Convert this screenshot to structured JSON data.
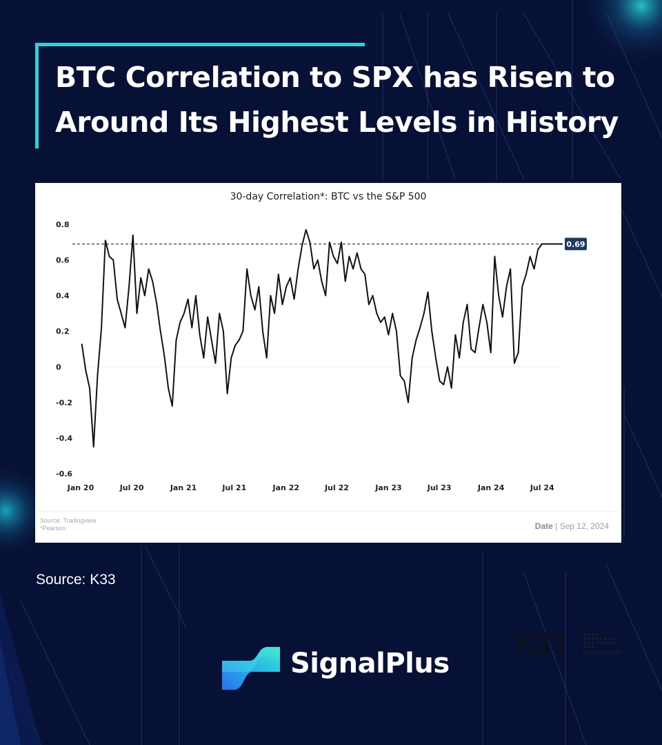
{
  "colors": {
    "background": "#071035",
    "accent": "#2ad3d8",
    "line": "#111111",
    "badge": "#1f3a5f"
  },
  "headline": {
    "line1": "BTC Correlation to SPX has Risen to",
    "line2": "Around Its Highest Levels in History"
  },
  "source_note": "Source: K33",
  "footer": {
    "source_line1": "Source: Tradingview",
    "source_line2": "*Pearson",
    "date_label": "Date",
    "date_value": "| Sep 12, 2024"
  },
  "brand": {
    "name": "K33",
    "sub": "RESEARCH",
    "icon": "dot-grid-icon"
  },
  "logo": {
    "name": "SignalPlus",
    "icon": "signalplus-logo-icon"
  },
  "chart_data": {
    "type": "line",
    "title": "30-day Correlation*: BTC vs the S&P 500",
    "xlabel": "",
    "ylabel": "",
    "ylim": [
      -0.6,
      0.8
    ],
    "xlim": [
      "2020-01-01",
      "2024-09-12"
    ],
    "yticks": [
      0.8,
      0.6,
      0.4,
      0.2,
      0,
      -0.2,
      -0.4,
      -0.6
    ],
    "ytick_labels": [
      "0.8",
      "0.6",
      "0.4",
      "0.2",
      "0",
      "-0.2",
      "-0.4",
      "-0.6"
    ],
    "xticks": [
      "2020-01-01",
      "2020-07-01",
      "2021-01-01",
      "2021-07-01",
      "2022-01-01",
      "2022-07-01",
      "2023-01-01",
      "2023-07-01",
      "2024-01-01",
      "2024-07-01"
    ],
    "xtick_labels": [
      "Jan 20",
      "Jul 20",
      "Jan 21",
      "Jul 21",
      "Jan 22",
      "Jul 22",
      "Jan 23",
      "Jul 23",
      "Jan 24",
      "Jul 24"
    ],
    "grid": false,
    "reference_line": {
      "value": 0.69,
      "style": "dashed"
    },
    "last_value_label": "0.69",
    "series": [
      {
        "x": [
          "2020-01-05",
          "2020-01-19",
          "2020-02-02",
          "2020-02-16",
          "2020-03-01",
          "2020-03-15",
          "2020-03-29",
          "2020-04-12",
          "2020-04-26",
          "2020-05-10",
          "2020-05-24",
          "2020-06-07",
          "2020-06-21",
          "2020-07-05",
          "2020-07-19",
          "2020-08-02",
          "2020-08-16",
          "2020-08-30",
          "2020-09-13",
          "2020-09-27",
          "2020-10-11",
          "2020-10-25",
          "2020-11-08",
          "2020-11-22",
          "2020-12-06",
          "2020-12-20",
          "2021-01-03",
          "2021-01-17",
          "2021-01-31",
          "2021-02-14",
          "2021-02-28",
          "2021-03-14",
          "2021-03-28",
          "2021-04-11",
          "2021-04-25",
          "2021-05-09",
          "2021-05-23",
          "2021-06-06",
          "2021-06-20",
          "2021-07-04",
          "2021-07-18",
          "2021-08-01",
          "2021-08-15",
          "2021-08-29",
          "2021-09-12",
          "2021-09-26",
          "2021-10-10",
          "2021-10-24",
          "2021-11-07",
          "2021-11-21",
          "2021-12-05",
          "2021-12-19",
          "2022-01-02",
          "2022-01-16",
          "2022-01-30",
          "2022-02-13",
          "2022-02-27",
          "2022-03-13",
          "2022-03-27",
          "2022-04-10",
          "2022-04-24",
          "2022-05-08",
          "2022-05-22",
          "2022-06-05",
          "2022-06-19",
          "2022-07-03",
          "2022-07-17",
          "2022-07-31",
          "2022-08-14",
          "2022-08-28",
          "2022-09-11",
          "2022-09-25",
          "2022-10-09",
          "2022-10-23",
          "2022-11-06",
          "2022-11-20",
          "2022-12-04",
          "2022-12-18",
          "2023-01-01",
          "2023-01-15",
          "2023-01-29",
          "2023-02-12",
          "2023-02-26",
          "2023-03-12",
          "2023-03-26",
          "2023-04-09",
          "2023-04-23",
          "2023-05-07",
          "2023-05-21",
          "2023-06-04",
          "2023-06-18",
          "2023-07-02",
          "2023-07-16",
          "2023-07-30",
          "2023-08-13",
          "2023-08-27",
          "2023-09-10",
          "2023-09-24",
          "2023-10-08",
          "2023-10-22",
          "2023-11-05",
          "2023-11-19",
          "2023-12-03",
          "2023-12-17",
          "2023-12-31",
          "2024-01-14",
          "2024-01-28",
          "2024-02-11",
          "2024-02-25",
          "2024-03-10",
          "2024-03-24",
          "2024-04-07",
          "2024-04-21",
          "2024-05-05",
          "2024-05-19",
          "2024-06-02",
          "2024-06-16",
          "2024-06-30",
          "2024-07-14",
          "2024-07-28",
          "2024-08-11",
          "2024-08-25",
          "2024-09-08",
          "2024-09-12"
        ],
        "values": [
          0.13,
          -0.02,
          -0.12,
          -0.45,
          -0.05,
          0.22,
          0.71,
          0.62,
          0.6,
          0.38,
          0.3,
          0.22,
          0.45,
          0.74,
          0.3,
          0.5,
          0.4,
          0.55,
          0.48,
          0.36,
          0.2,
          0.06,
          -0.12,
          -0.22,
          0.15,
          0.25,
          0.3,
          0.38,
          0.22,
          0.4,
          0.18,
          0.05,
          0.28,
          0.15,
          0.02,
          0.3,
          0.2,
          -0.15,
          0.05,
          0.12,
          0.15,
          0.2,
          0.55,
          0.4,
          0.32,
          0.45,
          0.2,
          0.05,
          0.4,
          0.3,
          0.52,
          0.35,
          0.45,
          0.5,
          0.38,
          0.55,
          0.68,
          0.77,
          0.7,
          0.55,
          0.6,
          0.48,
          0.4,
          0.7,
          0.62,
          0.58,
          0.7,
          0.48,
          0.62,
          0.55,
          0.64,
          0.55,
          0.52,
          0.35,
          0.4,
          0.3,
          0.25,
          0.28,
          0.18,
          0.3,
          0.2,
          -0.05,
          -0.08,
          -0.2,
          0.05,
          0.15,
          0.22,
          0.3,
          0.42,
          0.2,
          0.05,
          -0.08,
          -0.1,
          0.0,
          -0.12,
          0.18,
          0.05,
          0.25,
          0.35,
          0.1,
          0.08,
          0.22,
          0.35,
          0.25,
          0.08,
          0.62,
          0.4,
          0.28,
          0.45,
          0.55,
          0.02,
          0.08,
          0.45,
          0.52,
          0.62,
          0.55,
          0.66,
          0.69,
          0.69,
          0.69,
          0.69,
          0.69,
          0.69,
          0.69
        ]
      }
    ]
  }
}
